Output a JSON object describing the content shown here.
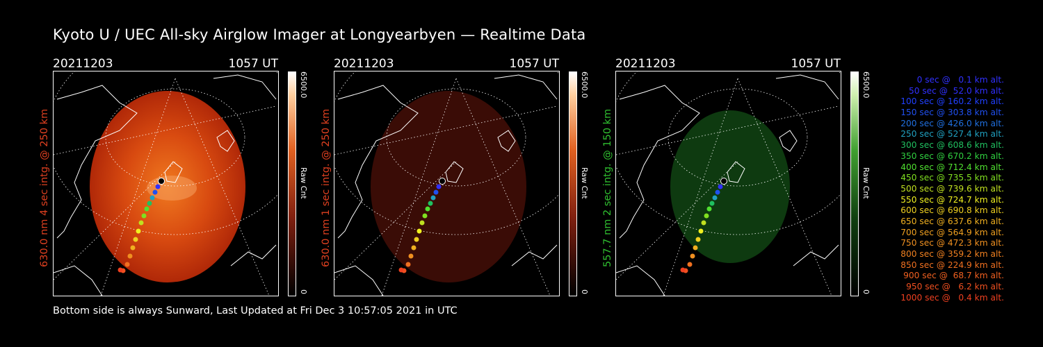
{
  "title": "Kyoto U / UEC All-sky Airglow Imager at Longyearbyen — Realtime Data",
  "footer": "Bottom side is always Sunward, Last Updated at Fri Dec  3 10:57:05 2021 in UTC",
  "panels": [
    {
      "date": "20211203",
      "time": "1057 UT",
      "side_label": "630.0 nm 4 sec intg. @ 250 km",
      "label_color": "#e04020",
      "colorbar_max": "6500.0",
      "colorbar_min": "0",
      "colorbar_unit": "Raw Cnt",
      "image_tint": "red-bright"
    },
    {
      "date": "20211203",
      "time": "1057 UT",
      "side_label": "630.0 nm 1 sec intg. @ 250 km",
      "label_color": "#e04020",
      "colorbar_max": "6500.0",
      "colorbar_min": "0",
      "colorbar_unit": "Raw Cnt",
      "image_tint": "red-dim"
    },
    {
      "date": "20211203",
      "time": "1057 UT",
      "side_label": "557.7 nm 2 sec intg. @ 150 km",
      "label_color": "#30c030",
      "colorbar_max": "6500.0",
      "colorbar_min": "0",
      "colorbar_unit": "Raw Cnt",
      "image_tint": "green-dim"
    }
  ],
  "legend": [
    {
      "text": "0 sec @   0.1 km alt.",
      "color": "#3030ff"
    },
    {
      "text": "50 sec @  52.0 km alt.",
      "color": "#3030ff"
    },
    {
      "text": "100 sec @ 160.2 km alt.",
      "color": "#2040ff"
    },
    {
      "text": "150 sec @ 303.8 km alt.",
      "color": "#2050f0"
    },
    {
      "text": "200 sec @ 426.0 km alt.",
      "color": "#2070e0"
    },
    {
      "text": "250 sec @ 527.4 km alt.",
      "color": "#20a0c0"
    },
    {
      "text": "300 sec @ 608.6 km alt.",
      "color": "#20c060"
    },
    {
      "text": "350 sec @ 670.2 km alt.",
      "color": "#30d040"
    },
    {
      "text": "400 sec @ 712.4 km alt.",
      "color": "#50e030"
    },
    {
      "text": "450 sec @ 735.5 km alt.",
      "color": "#80e020"
    },
    {
      "text": "500 sec @ 739.6 km alt.",
      "color": "#c0e020"
    },
    {
      "text": "550 sec @ 724.7 km alt.",
      "color": "#f0f020"
    },
    {
      "text": "600 sec @ 690.8 km alt.",
      "color": "#f0d020"
    },
    {
      "text": "650 sec @ 637.6 km alt.",
      "color": "#f0b020"
    },
    {
      "text": "700 sec @ 564.9 km alt.",
      "color": "#f0a020"
    },
    {
      "text": "750 sec @ 472.3 km alt.",
      "color": "#f09020"
    },
    {
      "text": "800 sec @ 359.2 km alt.",
      "color": "#f08020"
    },
    {
      "text": "850 sec @ 224.9 km alt.",
      "color": "#f07020"
    },
    {
      "text": "900 sec @  68.7 km alt.",
      "color": "#f06020"
    },
    {
      "text": "950 sec @   6.2 km alt.",
      "color": "#f05020"
    },
    {
      "text": "1000 sec @   0.4 km alt.",
      "color": "#f04020"
    }
  ]
}
